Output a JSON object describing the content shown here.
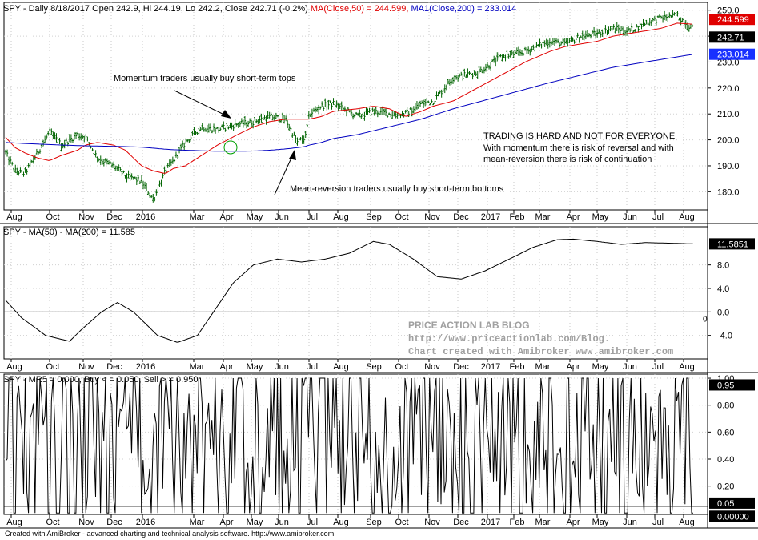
{
  "app": {
    "footer": "Created with AmiBroker - advanced charting and technical analysis software. http://www.amibroker.com"
  },
  "colors": {
    "price_bar": "#006400",
    "ma50": "#e00000",
    "ma200": "#0000c0",
    "oscillator": "#000000",
    "watermark": "#a0a0a0",
    "ma50_box": "#e00000",
    "ma200_box": "#1830ff"
  },
  "chart_data": [
    {
      "type": "line",
      "id": "price",
      "title_parts": {
        "prefix": "SPY - Daily 8/18/2017 Open 242.9, Hi 244.19, Lo 242.2, Close 242.71 (-0.2%) ",
        "ma50": "MA(Close,50) = 244.599, ",
        "ma200": "MA1(Close,200) = 233.014"
      },
      "x_tick_labels": [
        "Aug",
        "Oct",
        "Nov",
        "Dec",
        "2016",
        "Mar",
        "Apr",
        "May",
        "Jun",
        "Jul",
        "Aug",
        "Sep",
        "Oct",
        "Nov",
        "Dec",
        "2017",
        "Feb",
        "Mar",
        "Apr",
        "May",
        "Jun",
        "Jul",
        "Aug"
      ],
      "y_ticks": [
        180,
        190,
        200,
        210,
        220,
        230,
        240,
        250
      ],
      "y_tick_labels": [
        "180.0",
        "190.0",
        "200.0",
        "210.0",
        "220.0",
        "230.0",
        "240.0",
        "250.0"
      ],
      "ylim": [
        173,
        253
      ],
      "last_values": {
        "close": "242.71",
        "ma50": "244.599",
        "ma200": "233.014"
      },
      "x": [
        0,
        12,
        24,
        40,
        55,
        70,
        90,
        100,
        115,
        135,
        150,
        170,
        185,
        200,
        210,
        225,
        245,
        265,
        290,
        310,
        330,
        350,
        365,
        375,
        380,
        395,
        410,
        440,
        460,
        480,
        500,
        520,
        535,
        560,
        590,
        620,
        650,
        680,
        700,
        720,
        740,
        760,
        780,
        800,
        820,
        840,
        860
      ],
      "close": [
        195,
        188,
        187,
        195,
        203,
        198,
        202,
        201,
        193,
        190,
        186,
        184,
        177,
        188,
        192,
        199,
        205,
        204,
        206,
        207,
        209,
        208,
        199,
        201,
        210,
        213,
        214,
        209,
        211,
        210,
        210,
        214,
        215,
        224,
        226,
        232,
        234,
        238,
        237,
        240,
        241,
        243,
        242,
        245,
        247,
        248,
        242.7
      ],
      "ma50": [
        201,
        197,
        195,
        193,
        192,
        194,
        196,
        198,
        199,
        198,
        196,
        190,
        188,
        187,
        189,
        190,
        194,
        198,
        202,
        205,
        207,
        208,
        208,
        208,
        208,
        209,
        211,
        212,
        213,
        212,
        209,
        211,
        213,
        215,
        220,
        225,
        230,
        234,
        236,
        237,
        238,
        240,
        241,
        242,
        243,
        245,
        244.6
      ],
      "ma200": [
        199,
        198.8,
        198.6,
        198.4,
        198.2,
        198,
        197.8,
        197.7,
        197.6,
        197.5,
        197.4,
        197.2,
        196.8,
        196.4,
        196.2,
        196,
        195.8,
        195.6,
        195.6,
        195.7,
        196,
        196.5,
        197,
        197.5,
        198,
        199,
        200.5,
        202,
        203.5,
        205,
        206.5,
        208,
        209.5,
        212,
        214.5,
        217,
        219.5,
        222,
        223.5,
        225,
        226.5,
        228,
        229,
        230,
        231,
        232,
        233
      ],
      "annotations": [
        {
          "text": "Momentum traders usually buy short-term tops"
        },
        {
          "text": "Mean-reversion traders usually buy short-term bottoms"
        },
        {
          "text": "TRADING IS HARD AND NOT FOR EVERYONE"
        },
        {
          "text": "With momentum there is risk of reversal and with"
        },
        {
          "text": "mean-reversion there is risk of continuation"
        }
      ]
    },
    {
      "type": "line",
      "id": "ma_diff",
      "title": "SPY - MA(50) - MA(200) = 11.585",
      "x_tick_labels": [
        "Aug",
        "Oct",
        "Nov",
        "Dec",
        "2016",
        "Mar",
        "Apr",
        "May",
        "Jun",
        "Jul",
        "Aug",
        "Sep",
        "Oct",
        "Nov",
        "Dec",
        "2017",
        "Feb",
        "Mar",
        "Apr",
        "May",
        "Jun",
        "Jul",
        "Aug"
      ],
      "y_ticks": [
        -4,
        0,
        4,
        8
      ],
      "y_tick_labels": [
        "-4.0",
        "0.0",
        "4.0",
        "8.0"
      ],
      "ylim": [
        -8,
        14.5
      ],
      "zero_label": "0",
      "last_value": "11.5851",
      "x": [
        0,
        20,
        50,
        80,
        95,
        120,
        140,
        160,
        190,
        215,
        240,
        260,
        285,
        310,
        340,
        370,
        400,
        430,
        460,
        480,
        510,
        540,
        570,
        600,
        630,
        660,
        690,
        710,
        740,
        770,
        800,
        830,
        860
      ],
      "values": [
        2,
        -1,
        -4,
        -5,
        -3,
        0,
        1.6,
        0,
        -4,
        -5.2,
        -4,
        0,
        5,
        8,
        9,
        8.5,
        9,
        10,
        12,
        11.5,
        9,
        6,
        5.6,
        7,
        9,
        11,
        12.3,
        12.4,
        12,
        11.5,
        11.8,
        11.7,
        11.585
      ],
      "watermark": [
        "PRICE ACTION LAB BLOG",
        "http://www.priceactionlab.com/Blog.",
        "Chart created with Amibroker www.amibroker.com"
      ]
    },
    {
      "type": "line",
      "id": "mr5",
      "title": "SPY - MR5 = 0.000, Buy <  = 0.050, Sell >  = 0.950",
      "x_tick_labels": [
        "Aug",
        "Oct",
        "Nov",
        "Dec",
        "2016",
        "Mar",
        "Apr",
        "May",
        "Jun",
        "Jul",
        "Aug",
        "Sep",
        "Oct",
        "Nov",
        "Dec",
        "2017",
        "Feb",
        "Mar",
        "Apr",
        "May",
        "Jun",
        "Jul",
        "Aug"
      ],
      "y_ticks": [
        0.2,
        0.4,
        0.6,
        0.8,
        1.0
      ],
      "y_tick_labels": [
        "0.20",
        "0.40",
        "0.60",
        "0.80",
        "1.00"
      ],
      "ylim": [
        -0.01,
        1.03
      ],
      "buy_level": 0.05,
      "sell_level": 0.95,
      "buy_label": "0.05",
      "sell_label": "0.95",
      "last_value": "0.00000",
      "seed": 7,
      "count": 420
    }
  ]
}
